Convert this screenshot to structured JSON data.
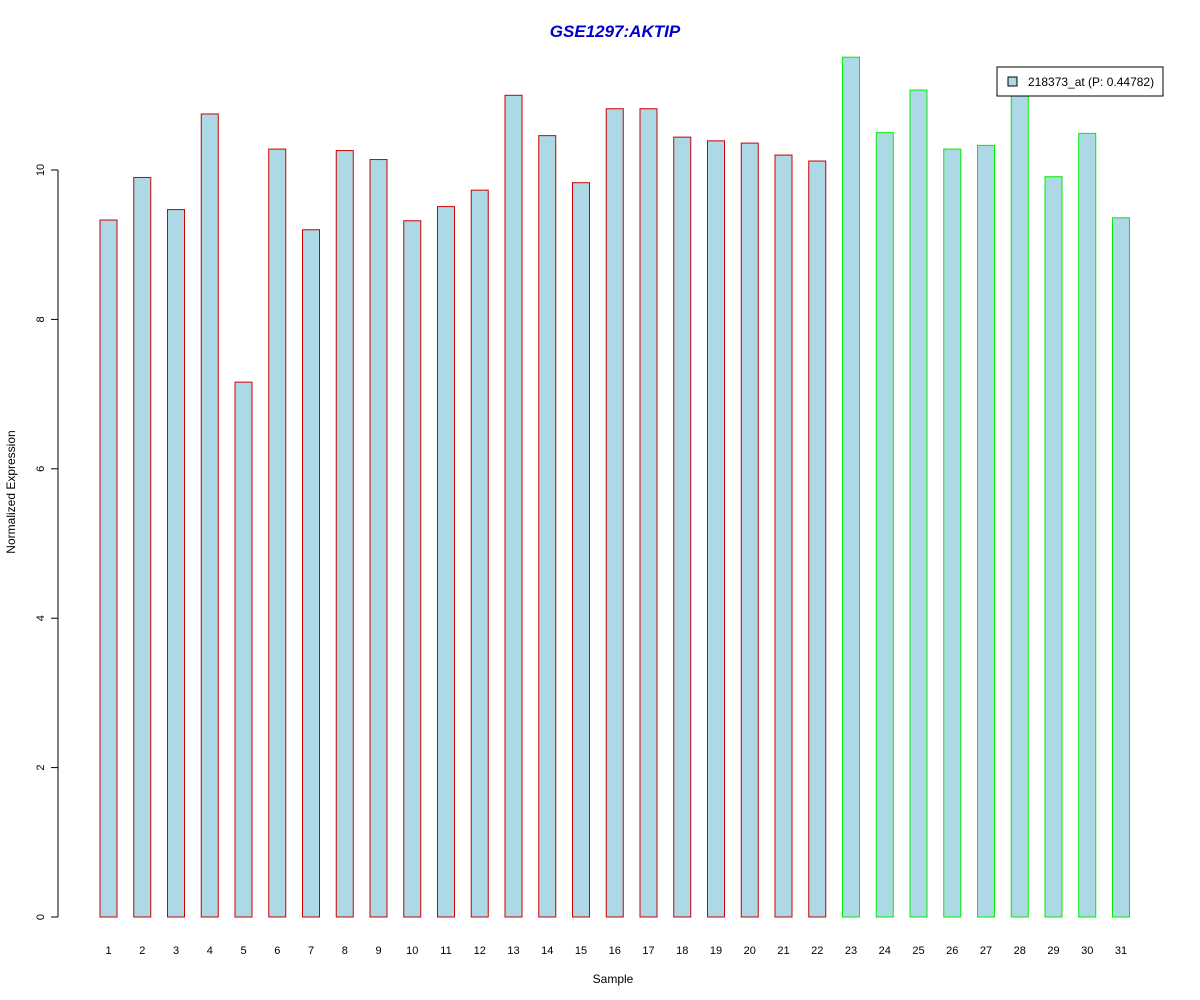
{
  "chart_data": {
    "type": "bar",
    "title": "GSE1297:AKTIP",
    "xlabel": "Sample",
    "ylabel": "Normalized Expression",
    "categories": [
      "1",
      "2",
      "3",
      "4",
      "5",
      "6",
      "7",
      "8",
      "9",
      "10",
      "11",
      "12",
      "13",
      "14",
      "15",
      "16",
      "17",
      "18",
      "19",
      "20",
      "21",
      "22",
      "23",
      "24",
      "25",
      "26",
      "27",
      "28",
      "29",
      "30",
      "31"
    ],
    "values": [
      9.33,
      9.9,
      9.47,
      10.75,
      7.16,
      10.28,
      9.2,
      10.26,
      10.14,
      9.32,
      9.51,
      9.73,
      11.0,
      10.46,
      9.83,
      10.82,
      10.82,
      10.44,
      10.39,
      10.36,
      10.2,
      10.12,
      11.51,
      10.5,
      11.07,
      10.28,
      10.33,
      11.2,
      9.91,
      10.49,
      9.36
    ],
    "group_index": [
      0,
      0,
      0,
      0,
      0,
      0,
      0,
      0,
      0,
      0,
      0,
      0,
      0,
      0,
      0,
      0,
      0,
      0,
      0,
      0,
      0,
      0,
      1,
      1,
      1,
      1,
      1,
      1,
      1,
      1,
      1
    ],
    "ylim": [
      0,
      11.9
    ],
    "yticks": [
      0,
      2,
      4,
      6,
      8,
      10
    ],
    "grid": false,
    "legend": {
      "position": "top-right",
      "entries": [
        {
          "label": "218373_at (P: 0.44782)"
        }
      ]
    },
    "colors": {
      "title": "#0000cc",
      "bar_fill": "#add8e6",
      "group_borders": [
        "#cc0000",
        "#00ee00"
      ],
      "axis": "#000000"
    }
  }
}
